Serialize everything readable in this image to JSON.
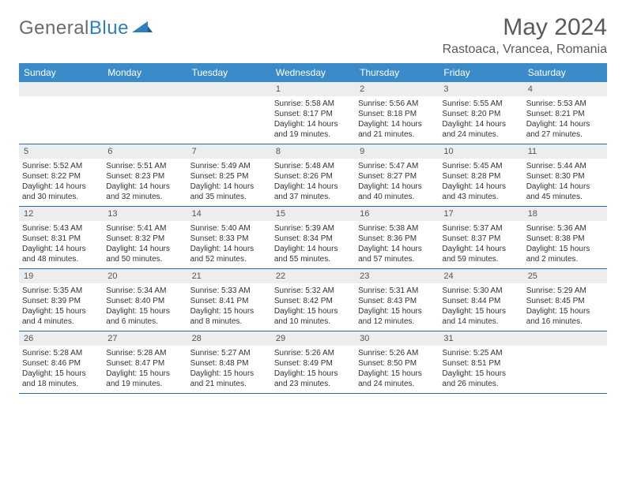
{
  "brand": {
    "part1": "General",
    "part2": "Blue"
  },
  "title": "May 2024",
  "location": "Rastoaca, Vrancea, Romania",
  "colors": {
    "header_bar": "#3b8bc8",
    "row_border": "#2a6da6",
    "day_num_bg": "#ebedef",
    "text": "#333333",
    "title_text": "#5a5a5a"
  },
  "weekdays": [
    "Sunday",
    "Monday",
    "Tuesday",
    "Wednesday",
    "Thursday",
    "Friday",
    "Saturday"
  ],
  "weeks": [
    [
      null,
      null,
      null,
      {
        "n": "1",
        "sr": "5:58 AM",
        "ss": "8:17 PM",
        "dl": "14 hours and 19 minutes."
      },
      {
        "n": "2",
        "sr": "5:56 AM",
        "ss": "8:18 PM",
        "dl": "14 hours and 21 minutes."
      },
      {
        "n": "3",
        "sr": "5:55 AM",
        "ss": "8:20 PM",
        "dl": "14 hours and 24 minutes."
      },
      {
        "n": "4",
        "sr": "5:53 AM",
        "ss": "8:21 PM",
        "dl": "14 hours and 27 minutes."
      }
    ],
    [
      {
        "n": "5",
        "sr": "5:52 AM",
        "ss": "8:22 PM",
        "dl": "14 hours and 30 minutes."
      },
      {
        "n": "6",
        "sr": "5:51 AM",
        "ss": "8:23 PM",
        "dl": "14 hours and 32 minutes."
      },
      {
        "n": "7",
        "sr": "5:49 AM",
        "ss": "8:25 PM",
        "dl": "14 hours and 35 minutes."
      },
      {
        "n": "8",
        "sr": "5:48 AM",
        "ss": "8:26 PM",
        "dl": "14 hours and 37 minutes."
      },
      {
        "n": "9",
        "sr": "5:47 AM",
        "ss": "8:27 PM",
        "dl": "14 hours and 40 minutes."
      },
      {
        "n": "10",
        "sr": "5:45 AM",
        "ss": "8:28 PM",
        "dl": "14 hours and 43 minutes."
      },
      {
        "n": "11",
        "sr": "5:44 AM",
        "ss": "8:30 PM",
        "dl": "14 hours and 45 minutes."
      }
    ],
    [
      {
        "n": "12",
        "sr": "5:43 AM",
        "ss": "8:31 PM",
        "dl": "14 hours and 48 minutes."
      },
      {
        "n": "13",
        "sr": "5:41 AM",
        "ss": "8:32 PM",
        "dl": "14 hours and 50 minutes."
      },
      {
        "n": "14",
        "sr": "5:40 AM",
        "ss": "8:33 PM",
        "dl": "14 hours and 52 minutes."
      },
      {
        "n": "15",
        "sr": "5:39 AM",
        "ss": "8:34 PM",
        "dl": "14 hours and 55 minutes."
      },
      {
        "n": "16",
        "sr": "5:38 AM",
        "ss": "8:36 PM",
        "dl": "14 hours and 57 minutes."
      },
      {
        "n": "17",
        "sr": "5:37 AM",
        "ss": "8:37 PM",
        "dl": "14 hours and 59 minutes."
      },
      {
        "n": "18",
        "sr": "5:36 AM",
        "ss": "8:38 PM",
        "dl": "15 hours and 2 minutes."
      }
    ],
    [
      {
        "n": "19",
        "sr": "5:35 AM",
        "ss": "8:39 PM",
        "dl": "15 hours and 4 minutes."
      },
      {
        "n": "20",
        "sr": "5:34 AM",
        "ss": "8:40 PM",
        "dl": "15 hours and 6 minutes."
      },
      {
        "n": "21",
        "sr": "5:33 AM",
        "ss": "8:41 PM",
        "dl": "15 hours and 8 minutes."
      },
      {
        "n": "22",
        "sr": "5:32 AM",
        "ss": "8:42 PM",
        "dl": "15 hours and 10 minutes."
      },
      {
        "n": "23",
        "sr": "5:31 AM",
        "ss": "8:43 PM",
        "dl": "15 hours and 12 minutes."
      },
      {
        "n": "24",
        "sr": "5:30 AM",
        "ss": "8:44 PM",
        "dl": "15 hours and 14 minutes."
      },
      {
        "n": "25",
        "sr": "5:29 AM",
        "ss": "8:45 PM",
        "dl": "15 hours and 16 minutes."
      }
    ],
    [
      {
        "n": "26",
        "sr": "5:28 AM",
        "ss": "8:46 PM",
        "dl": "15 hours and 18 minutes."
      },
      {
        "n": "27",
        "sr": "5:28 AM",
        "ss": "8:47 PM",
        "dl": "15 hours and 19 minutes."
      },
      {
        "n": "28",
        "sr": "5:27 AM",
        "ss": "8:48 PM",
        "dl": "15 hours and 21 minutes."
      },
      {
        "n": "29",
        "sr": "5:26 AM",
        "ss": "8:49 PM",
        "dl": "15 hours and 23 minutes."
      },
      {
        "n": "30",
        "sr": "5:26 AM",
        "ss": "8:50 PM",
        "dl": "15 hours and 24 minutes."
      },
      {
        "n": "31",
        "sr": "5:25 AM",
        "ss": "8:51 PM",
        "dl": "15 hours and 26 minutes."
      },
      null
    ]
  ],
  "labels": {
    "sunrise": "Sunrise: ",
    "sunset": "Sunset: ",
    "daylight": "Daylight: "
  }
}
